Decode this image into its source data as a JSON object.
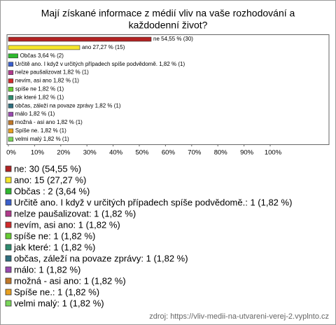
{
  "chart_data": {
    "type": "bar",
    "orientation": "horizontal",
    "title": [
      "Mají získané informace z médií vliv na vaše rozhodování a",
      "každodenní život?"
    ],
    "values": [
      54.55,
      27.27,
      3.64,
      1.82,
      1.82,
      1.82,
      1.82,
      1.82,
      1.82,
      1.82,
      1.82,
      1.82,
      1.82
    ],
    "value_labels": [
      "ne 54,55 % (30)",
      "ano 27,27 % (15)",
      "Občas  3,64 % (2)",
      "Určitě ano. I když v určitých případech spíše podvědomě. 1,82 % (1)",
      "nelze paušalizovat 1,82 % (1)",
      "nevím, asi ano 1,82 % (1)",
      "spíše ne 1,82 % (1)",
      "jak které 1,82 % (1)",
      "občas, záleží na povaze zprávy 1,82 % (1)",
      "málo 1,82 % (1)",
      "možná - asi ano 1,82 % (1)",
      "Spíše ne. 1,82 % (1)",
      "velmi malý 1,82 % (1)"
    ],
    "legend_labels": [
      "ne: 30 (54,55 %)",
      "ano: 15 (27,27 %)",
      "Občas : 2 (3,64 %)",
      "Určitě ano. I když v určitých případech spíše podvědomě.: 1 (1,82 %)",
      "nelze paušalizovat: 1 (1,82 %)",
      "nevím, asi ano: 1 (1,82 %)",
      "spíše ne: 1 (1,82 %)",
      "jak které: 1 (1,82 %)",
      "občas, záleží na povaze zprávy: 1 (1,82 %)",
      "málo: 1 (1,82 %)",
      "možná - asi ano: 1 (1,82 %)",
      "Spíše ne.: 1 (1,82 %)",
      "velmi malý: 1 (1,82 %)"
    ],
    "colors": [
      "#b22222",
      "#f5e62a",
      "#2eb82e",
      "#3a5fcd",
      "#b03a8c",
      "#d22a2a",
      "#66cc33",
      "#2e8b6e",
      "#2f6f7f",
      "#9a4ab0",
      "#c0782a",
      "#e8a020",
      "#7ad65a"
    ],
    "xlim": [
      0,
      100
    ],
    "xticks": [
      {
        "value": 0,
        "label": "0%"
      },
      {
        "value": 10,
        "label": "10%"
      },
      {
        "value": 20,
        "label": "20%"
      },
      {
        "value": 30,
        "label": "30%"
      },
      {
        "value": 40,
        "label": "40%"
      },
      {
        "value": 50,
        "label": "50%"
      },
      {
        "value": 60,
        "label": "60%"
      },
      {
        "value": 70,
        "label": "70%"
      },
      {
        "value": 80,
        "label": "80%"
      },
      {
        "value": 90,
        "label": "90%"
      },
      {
        "value": 100,
        "label": "100%"
      }
    ],
    "source": "zdroj: https://vliv-medii-na-utvareni-verej-2.vyplnto.cz"
  }
}
